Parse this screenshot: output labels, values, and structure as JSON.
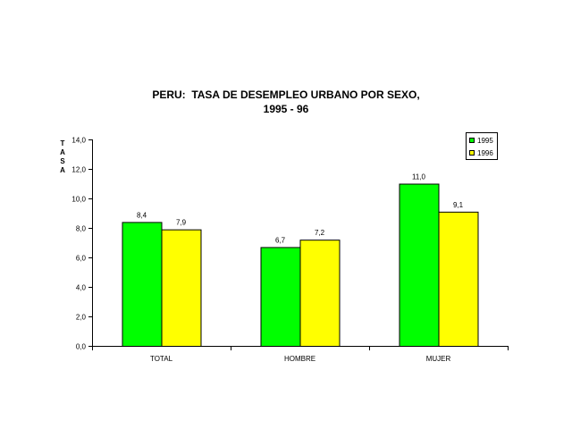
{
  "chart_data": {
    "type": "bar",
    "title": [
      "PERU:  TASA DE DESEMPLEO URBANO POR SEXO,",
      "1995 - 96"
    ],
    "ylabel": "TASA",
    "xlabel": "",
    "categories": [
      "TOTAL",
      "HOMBRE",
      "MUJER"
    ],
    "series": [
      {
        "name": "1995",
        "values": [
          8.4,
          6.7,
          11.0
        ],
        "labels": [
          "8,4",
          "6,7",
          "11,0"
        ],
        "color": "#00ff00"
      },
      {
        "name": "1996",
        "values": [
          7.9,
          7.2,
          9.1
        ],
        "labels": [
          "7,9",
          "7,2",
          "9,1"
        ],
        "color": "#ffff00"
      }
    ],
    "ylim": [
      0,
      14
    ],
    "yticks": [
      0,
      2,
      4,
      6,
      8,
      10,
      12,
      14
    ],
    "ytick_labels": [
      "0,0",
      "2,0",
      "4,0",
      "6,0",
      "8,0",
      "10,0",
      "12,0",
      "14,0"
    ],
    "grid": false,
    "legend_position": "top-right",
    "legend_frame_color": "#000000"
  }
}
